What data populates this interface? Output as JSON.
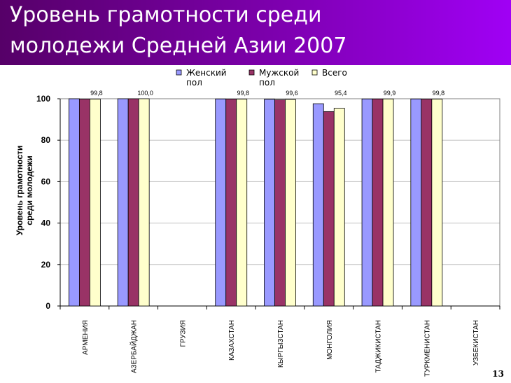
{
  "slide": {
    "title_line1": "Уровень грамотности среди",
    "title_line2": "молодежи Средней Азии 2007",
    "page_number": "13"
  },
  "chart_data": {
    "type": "bar",
    "title": "Уровень грамотности среди молодежи Средней Азии 2007",
    "ylabel_line1": "Уровень грамотности",
    "ylabel_line2": "среди молодежи",
    "xlabel": "",
    "ylim": [
      0,
      100
    ],
    "yticks": [
      0,
      20,
      40,
      60,
      80,
      100
    ],
    "categories": [
      "АРМЕНИЯ",
      "АЗЕРБАЙДЖАН",
      "ГРУЗИЯ",
      "КАЗАХСТАН",
      "КЫРГЫЗСТАН",
      "МОНГОЛИЯ",
      "ТАДЖИКИСТАН",
      "ТУРКМЕНИСТАН",
      "УЗБЕКИСТАН"
    ],
    "series": [
      {
        "name_line1": "Женский",
        "name_line2": "пол",
        "color": "#9999ff",
        "values": [
          100,
          100,
          null,
          99.9,
          99.7,
          97.6,
          99.9,
          99.9,
          null
        ]
      },
      {
        "name_line1": "Мужской",
        "name_line2": "пол",
        "color": "#993366",
        "values": [
          99.8,
          100,
          null,
          99.8,
          99.5,
          93.8,
          99.9,
          99.8,
          null
        ]
      },
      {
        "name_line1": "Всего",
        "name_line2": "",
        "color": "#ffffcc",
        "values": [
          99.8,
          100,
          null,
          99.8,
          99.6,
          95.4,
          99.9,
          99.8,
          null
        ]
      }
    ],
    "data_labels": [
      "99,8",
      "100,0",
      "",
      "99,8",
      "99,6",
      "95,4",
      "99,9",
      "99,8",
      ""
    ],
    "legend": "top",
    "grid": true
  }
}
